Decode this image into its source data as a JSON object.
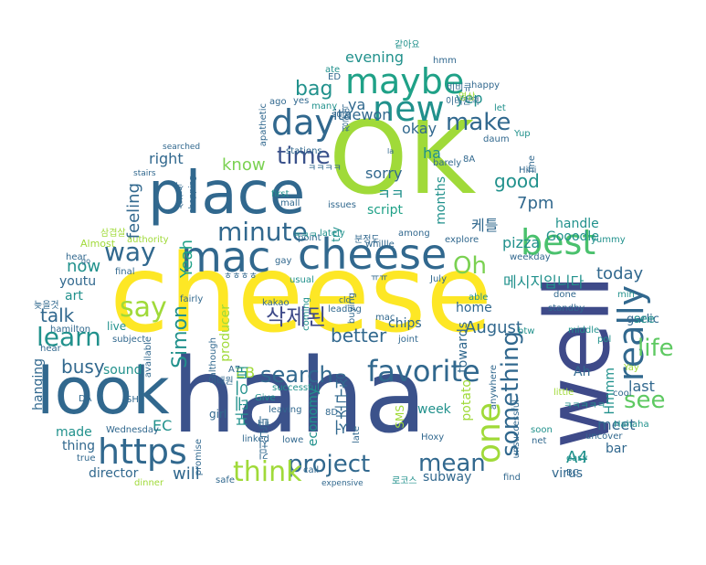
{
  "words": [
    {
      "text": "cheese",
      "color": "#fde725"
    },
    {
      "text": "OK",
      "color": "#a0da39"
    },
    {
      "text": "haha",
      "color": "#3b528b"
    },
    {
      "text": "well",
      "color": "#3e4a89"
    },
    {
      "text": "look",
      "color": "#31688e"
    },
    {
      "text": "place",
      "color": "#31688e"
    },
    {
      "text": "mac",
      "color": "#31688e"
    },
    {
      "text": "cheese",
      "color": "#31688e"
    },
    {
      "text": "new",
      "color": "#21918c"
    },
    {
      "text": "maybe",
      "color": "#1fa187"
    },
    {
      "text": "best",
      "color": "#4ac16d"
    },
    {
      "text": "day",
      "color": "#31688e"
    },
    {
      "text": "really",
      "color": "#31688e"
    },
    {
      "text": "https",
      "color": "#31688e"
    },
    {
      "text": "one",
      "color": "#a0da39"
    },
    {
      "text": "favorite",
      "color": "#31688e"
    },
    {
      "text": "project",
      "color": "#31688e"
    },
    {
      "text": "think",
      "color": "#a0da39"
    },
    {
      "text": "minute",
      "color": "#31688e"
    },
    {
      "text": "learn",
      "color": "#21918c"
    },
    {
      "text": "way",
      "color": "#31688e"
    },
    {
      "text": "say",
      "color": "#a0da39"
    },
    {
      "text": "search",
      "color": "#31688e"
    },
    {
      "text": "something",
      "color": "#31688e"
    },
    {
      "text": "life",
      "color": "#5ec962"
    },
    {
      "text": "see",
      "color": "#5ec962"
    },
    {
      "text": "mean",
      "color": "#31688e"
    },
    {
      "text": "Oh",
      "color": "#7ad151"
    },
    {
      "text": "make",
      "color": "#31688e"
    },
    {
      "text": "time",
      "color": "#3b528b"
    },
    {
      "text": "bag",
      "color": "#21918c"
    },
    {
      "text": "Simon",
      "color": "#21918c"
    },
    {
      "text": "busy",
      "color": "#31688e"
    },
    {
      "text": "talk",
      "color": "#31688e"
    },
    {
      "text": "better",
      "color": "#31688e"
    },
    {
      "text": "August",
      "color": "#31688e"
    },
    {
      "text": "today",
      "color": "#31688e"
    },
    {
      "text": "good",
      "color": "#21918c"
    },
    {
      "text": "7pm",
      "color": "#31688e"
    },
    {
      "text": "pizza",
      "color": "#21918c"
    },
    {
      "text": "sorry",
      "color": "#31688e"
    },
    {
      "text": "know",
      "color": "#7ad151"
    },
    {
      "text": "right",
      "color": "#31688e"
    },
    {
      "text": "feeling",
      "color": "#31688e"
    },
    {
      "text": "Yeah",
      "color": "#1fa187"
    },
    {
      "text": "now",
      "color": "#21918c"
    },
    {
      "text": "evening",
      "color": "#21918c"
    },
    {
      "text": "okay",
      "color": "#31688e"
    },
    {
      "text": "itaewon",
      "color": "#31688e"
    },
    {
      "text": "yep",
      "color": "#21918c"
    },
    {
      "text": "ya",
      "color": "#31688e"
    },
    {
      "text": "ha",
      "color": "#21918c"
    },
    {
      "text": "months",
      "color": "#21918c"
    },
    {
      "text": "towards",
      "color": "#31688e"
    },
    {
      "text": "potato",
      "color": "#a0da39"
    },
    {
      "text": "Hmmm",
      "color": "#21918c"
    },
    {
      "text": "A4",
      "color": "#21918c"
    },
    {
      "text": "meet",
      "color": "#31688e"
    },
    {
      "text": "last",
      "color": "#31688e"
    },
    {
      "text": "bar",
      "color": "#31688e"
    },
    {
      "text": "virus",
      "color": "#31688e"
    },
    {
      "text": "will",
      "color": "#31688e"
    },
    {
      "text": "EC",
      "color": "#21918c"
    },
    {
      "text": "EB",
      "color": "#a0da39"
    },
    {
      "text": "sound",
      "color": "#21918c"
    },
    {
      "text": "hanging",
      "color": "#31688e"
    },
    {
      "text": "made",
      "color": "#21918c"
    },
    {
      "text": "thing",
      "color": "#31688e"
    },
    {
      "text": "director",
      "color": "#31688e"
    },
    {
      "text": "chips",
      "color": "#31688e"
    },
    {
      "text": "producer",
      "color": "#a0da39"
    },
    {
      "text": "live",
      "color": "#21918c"
    },
    {
      "text": "girl",
      "color": "#31688e"
    },
    {
      "text": "home",
      "color": "#31688e"
    },
    {
      "text": "Ah",
      "color": "#31688e"
    },
    {
      "text": "garlic",
      "color": "#31688e"
    },
    {
      "text": "see",
      "color": "#21918c"
    },
    {
      "text": "script",
      "color": "#1fa187"
    },
    {
      "text": "economy",
      "color": "#21918c"
    },
    {
      "text": "subway",
      "color": "#31688e"
    },
    {
      "text": "week",
      "color": "#21918c"
    },
    {
      "text": "handle",
      "color": "#21918c"
    },
    {
      "text": "Gooodle",
      "color": "#21918c"
    },
    {
      "text": "youtu",
      "color": "#31688e"
    },
    {
      "text": "art",
      "color": "#21918c"
    },
    {
      "text": "삭제된",
      "color": "#3e4a89"
    },
    {
      "text": "메시지입니다",
      "color": "#21918c"
    },
    {
      "text": "케틀",
      "color": "#31688e"
    },
    {
      "text": "포테이토",
      "color": "#21918c"
    },
    {
      "text": "서초구청",
      "color": "#31688e"
    },
    {
      "text": "ㅋㅋ",
      "color": "#21918c"
    },
    {
      "text": "hmm",
      "color": "#31688e"
    },
    {
      "text": "happy",
      "color": "#31688e"
    },
    {
      "text": "let",
      "color": "#21918c"
    },
    {
      "text": "daum",
      "color": "#31688e"
    },
    {
      "text": "fine",
      "color": "#31688e"
    },
    {
      "text": "Yup",
      "color": "#21918c"
    },
    {
      "text": "Hihi",
      "color": "#31688e"
    },
    {
      "text": "8A",
      "color": "#31688e"
    },
    {
      "text": "barely",
      "color": "#31688e"
    },
    {
      "text": "sure",
      "color": "#31688e"
    },
    {
      "text": "stations",
      "color": "#31688e"
    },
    {
      "text": "apathetic",
      "color": "#31688e"
    },
    {
      "text": "searched",
      "color": "#31688e"
    },
    {
      "text": "stairs",
      "color": "#31688e"
    },
    {
      "text": "shopping",
      "color": "#31688e"
    },
    {
      "text": "first",
      "color": "#21918c"
    },
    {
      "text": "mall",
      "color": "#31688e"
    },
    {
      "text": "issues",
      "color": "#31688e"
    },
    {
      "text": "lately",
      "color": "#21918c"
    },
    {
      "text": "among",
      "color": "#31688e"
    },
    {
      "text": "explore",
      "color": "#31688e"
    },
    {
      "text": "weekday",
      "color": "#31688e"
    },
    {
      "text": "yummy",
      "color": "#21918c"
    },
    {
      "text": "Almost",
      "color": "#a0da39"
    },
    {
      "text": "authority",
      "color": "#a0da39"
    },
    {
      "text": "hear",
      "color": "#31688e"
    },
    {
      "text": "final",
      "color": "#31688e"
    },
    {
      "text": "gay",
      "color": "#31688e"
    },
    {
      "text": "point",
      "color": "#31688e"
    },
    {
      "text": "usual",
      "color": "#21918c"
    },
    {
      "text": "whillle",
      "color": "#31688e"
    },
    {
      "text": "July",
      "color": "#31688e"
    },
    {
      "text": "done",
      "color": "#31688e"
    },
    {
      "text": "min",
      "color": "#21918c"
    },
    {
      "text": "able",
      "color": "#21918c"
    },
    {
      "text": "standby",
      "color": "#31688e"
    },
    {
      "text": "middle",
      "color": "#21918c"
    },
    {
      "text": "pol",
      "color": "#21918c"
    },
    {
      "text": "Yay",
      "color": "#a0da39"
    },
    {
      "text": "btw",
      "color": "#21918c"
    },
    {
      "text": "hamilton",
      "color": "#31688e"
    },
    {
      "text": "subject",
      "color": "#31688e"
    },
    {
      "text": "available",
      "color": "#31688e"
    },
    {
      "text": "although",
      "color": "#31688e"
    },
    {
      "text": "kakao",
      "color": "#31688e"
    },
    {
      "text": "fairly",
      "color": "#31688e"
    },
    {
      "text": "coming",
      "color": "#21918c"
    },
    {
      "text": "leading",
      "color": "#31688e"
    },
    {
      "text": "buying",
      "color": "#31688e"
    },
    {
      "text": "mac",
      "color": "#31688e"
    },
    {
      "text": "joint",
      "color": "#31688e"
    },
    {
      "text": "cld",
      "color": "#31688e"
    },
    {
      "text": "A7",
      "color": "#31688e"
    },
    {
      "text": "8D",
      "color": "#31688e"
    },
    {
      "text": "SMS",
      "color": "#a0da39"
    },
    {
      "text": "anywhere",
      "color": "#31688e"
    },
    {
      "text": "unsuccessful",
      "color": "#31688e"
    },
    {
      "text": "little",
      "color": "#a0da39"
    },
    {
      "text": "cool",
      "color": "#31688e"
    },
    {
      "text": "Hahaha",
      "color": "#21918c"
    },
    {
      "text": "uncover",
      "color": "#31688e"
    },
    {
      "text": "BC",
      "color": "#31688e"
    },
    {
      "text": "easy",
      "color": "#21918c"
    },
    {
      "text": "soon",
      "color": "#21918c"
    },
    {
      "text": "net",
      "color": "#31688e"
    },
    {
      "text": "find",
      "color": "#31688e"
    },
    {
      "text": "late",
      "color": "#31688e"
    },
    {
      "text": "Hoxy",
      "color": "#31688e"
    },
    {
      "text": "lowe",
      "color": "#31688e"
    },
    {
      "text": "leaving",
      "color": "#31688e"
    },
    {
      "text": "Hii",
      "color": "#31688e"
    },
    {
      "text": "Give",
      "color": "#21918c"
    },
    {
      "text": "linked",
      "color": "#31688e"
    },
    {
      "text": "successful",
      "color": "#21918c"
    },
    {
      "text": "call",
      "color": "#31688e"
    },
    {
      "text": "promise",
      "color": "#31688e"
    },
    {
      "text": "safe",
      "color": "#31688e"
    },
    {
      "text": "expensive",
      "color": "#31688e"
    },
    {
      "text": "dinner",
      "color": "#a0da39"
    },
    {
      "text": "true",
      "color": "#31688e"
    },
    {
      "text": "Wednesday",
      "color": "#31688e"
    },
    {
      "text": "SH2",
      "color": "#31688e"
    },
    {
      "text": "DA",
      "color": "#31688e"
    },
    {
      "text": "ED",
      "color": "#31688e"
    },
    {
      "text": "ate",
      "color": "#21918c"
    },
    {
      "text": "yes",
      "color": "#31688e"
    },
    {
      "text": "ago",
      "color": "#31688e"
    },
    {
      "text": "many",
      "color": "#21918c"
    },
    {
      "text": "try",
      "color": "#21918c"
    },
    {
      "text": "go",
      "color": "#31688e"
    },
    {
      "text": "la",
      "color": "#31688e"
    },
    {
      "text": "hear",
      "color": "#31688e"
    },
    {
      "text": "같아요",
      "color": "#21918c"
    },
    {
      "text": "이태원역",
      "color": "#31688e"
    },
    {
      "text": "비비큐",
      "color": "#31688e"
    },
    {
      "text": "청구역",
      "color": "#31688e"
    },
    {
      "text": "영상",
      "color": "#a0da39"
    },
    {
      "text": "분정도",
      "color": "#31688e"
    },
    {
      "text": "삼겹살",
      "color": "#a0da39"
    },
    {
      "text": "삼검색",
      "color": "#31688e"
    },
    {
      "text": "늦을것",
      "color": "#31688e"
    },
    {
      "text": "이태원",
      "color": "#31688e"
    },
    {
      "text": "김치군니",
      "color": "#31688e"
    },
    {
      "text": "로코스",
      "color": "#21918c"
    },
    {
      "text": "ㅋㅋㅋㅋ",
      "color": "#31688e"
    },
    {
      "text": "ㅎㅎㅎㅎ",
      "color": "#31688e"
    },
    {
      "text": "ㅋㅋㅋㅋㅋ",
      "color": "#21918c"
    },
    {
      "text": "ㅠㅠ",
      "color": "#31688e"
    },
    {
      "text": "ㅋㅋㅋ",
      "color": "#21918c"
    }
  ]
}
